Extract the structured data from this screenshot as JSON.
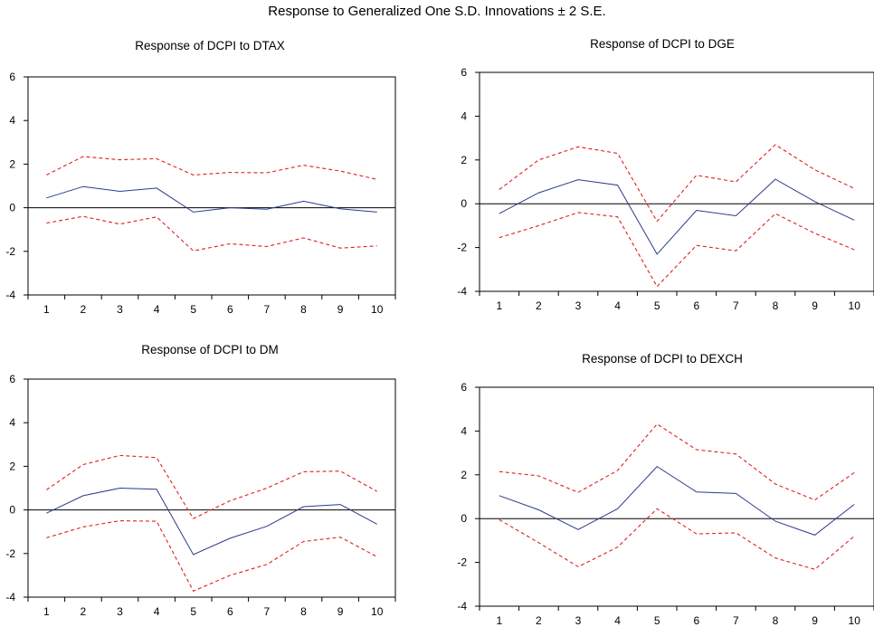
{
  "title": "Response to Generalized One S.D. Innovations ± 2 S.E.",
  "colors": {
    "response": "#2b3a8c",
    "band": "#e02020",
    "axis": "#000000",
    "zero": "#000000"
  },
  "chart_data": [
    {
      "type": "line",
      "title": "Response of DCPI to DTAX",
      "x": [
        1,
        2,
        3,
        4,
        5,
        6,
        7,
        8,
        9,
        10
      ],
      "ylim": [
        -4,
        6
      ],
      "yticks": [
        -4,
        -2,
        0,
        2,
        4,
        6
      ],
      "series": [
        {
          "role": "response",
          "values": [
            0.45,
            0.97,
            0.75,
            0.9,
            -0.2,
            0.0,
            -0.07,
            0.3,
            -0.05,
            -0.2
          ]
        },
        {
          "role": "upper",
          "values": [
            1.5,
            2.35,
            2.2,
            2.25,
            1.5,
            1.62,
            1.6,
            1.95,
            1.68,
            1.3
          ]
        },
        {
          "role": "lower",
          "values": [
            -0.7,
            -0.4,
            -0.75,
            -0.42,
            -1.98,
            -1.65,
            -1.78,
            -1.38,
            -1.85,
            -1.75
          ]
        }
      ]
    },
    {
      "type": "line",
      "title": "Response of DCPI to DGE",
      "x": [
        1,
        2,
        3,
        4,
        5,
        6,
        7,
        8,
        9,
        10
      ],
      "ylim": [
        -4,
        6
      ],
      "yticks": [
        -4,
        -2,
        0,
        2,
        4,
        6
      ],
      "series": [
        {
          "role": "response",
          "values": [
            -0.45,
            0.5,
            1.1,
            0.85,
            -2.3,
            -0.3,
            -0.55,
            1.12,
            0.1,
            -0.75
          ]
        },
        {
          "role": "upper",
          "values": [
            0.65,
            2.0,
            2.6,
            2.3,
            -0.8,
            1.3,
            1.0,
            2.7,
            1.55,
            0.7
          ]
        },
        {
          "role": "lower",
          "values": [
            -1.55,
            -1.0,
            -0.4,
            -0.6,
            -3.78,
            -1.9,
            -2.15,
            -0.45,
            -1.35,
            -2.1
          ]
        }
      ]
    },
    {
      "type": "line",
      "title": "Response of DCPI to DM",
      "x": [
        1,
        2,
        3,
        4,
        5,
        6,
        7,
        8,
        9,
        10
      ],
      "ylim": [
        -4,
        6
      ],
      "yticks": [
        -4,
        -2,
        0,
        2,
        4,
        6
      ],
      "series": [
        {
          "role": "response",
          "values": [
            -0.15,
            0.65,
            1.0,
            0.95,
            -2.05,
            -1.3,
            -0.75,
            0.15,
            0.25,
            -0.65
          ]
        },
        {
          "role": "upper",
          "values": [
            0.92,
            2.08,
            2.5,
            2.4,
            -0.4,
            0.42,
            1.0,
            1.75,
            1.78,
            0.85
          ]
        },
        {
          "role": "lower",
          "values": [
            -1.28,
            -0.78,
            -0.5,
            -0.52,
            -3.72,
            -3.0,
            -2.5,
            -1.45,
            -1.25,
            -2.15
          ]
        }
      ]
    },
    {
      "type": "line",
      "title": "Response of DCPI to DEXCH",
      "x": [
        1,
        2,
        3,
        4,
        5,
        6,
        7,
        8,
        9,
        10
      ],
      "ylim": [
        -4,
        6
      ],
      "yticks": [
        -4,
        -2,
        0,
        2,
        4,
        6
      ],
      "series": [
        {
          "role": "response",
          "values": [
            1.05,
            0.4,
            -0.5,
            0.45,
            2.38,
            1.22,
            1.15,
            -0.12,
            -0.75,
            0.65
          ]
        },
        {
          "role": "upper",
          "values": [
            2.15,
            1.95,
            1.2,
            2.2,
            4.32,
            3.15,
            2.95,
            1.58,
            0.85,
            2.1
          ]
        },
        {
          "role": "lower",
          "values": [
            -0.05,
            -1.1,
            -2.2,
            -1.3,
            0.45,
            -0.7,
            -0.65,
            -1.8,
            -2.32,
            -0.8
          ]
        }
      ]
    }
  ]
}
